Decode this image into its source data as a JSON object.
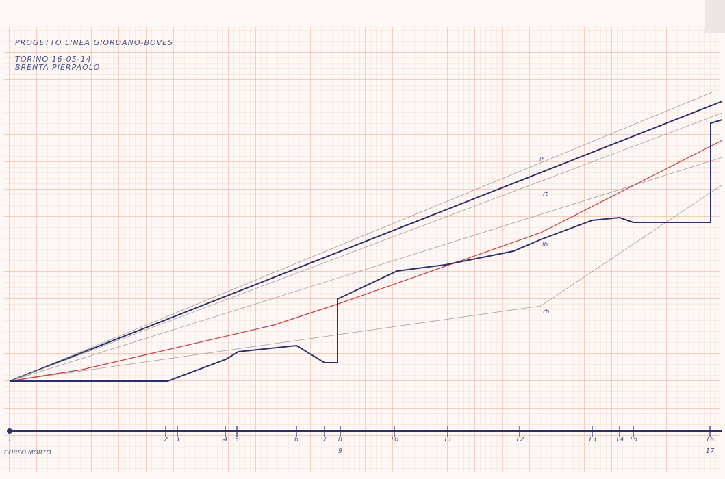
{
  "header": {
    "lines": [
      "PROGETTO LINEA GIORDANO-BOVES",
      "TORINO 16-05-14",
      "BRENTA PIERPAOLO"
    ]
  },
  "line_labels": [
    "lt",
    "rt",
    "lb",
    "rb"
  ],
  "stations": [
    "1",
    "2",
    "3",
    "4",
    "5",
    "6",
    "7",
    "8",
    "9",
    "10",
    "11",
    "12",
    "13",
    "14",
    "15",
    "16",
    "17"
  ],
  "origin_note": "CORPO MORTO"
}
